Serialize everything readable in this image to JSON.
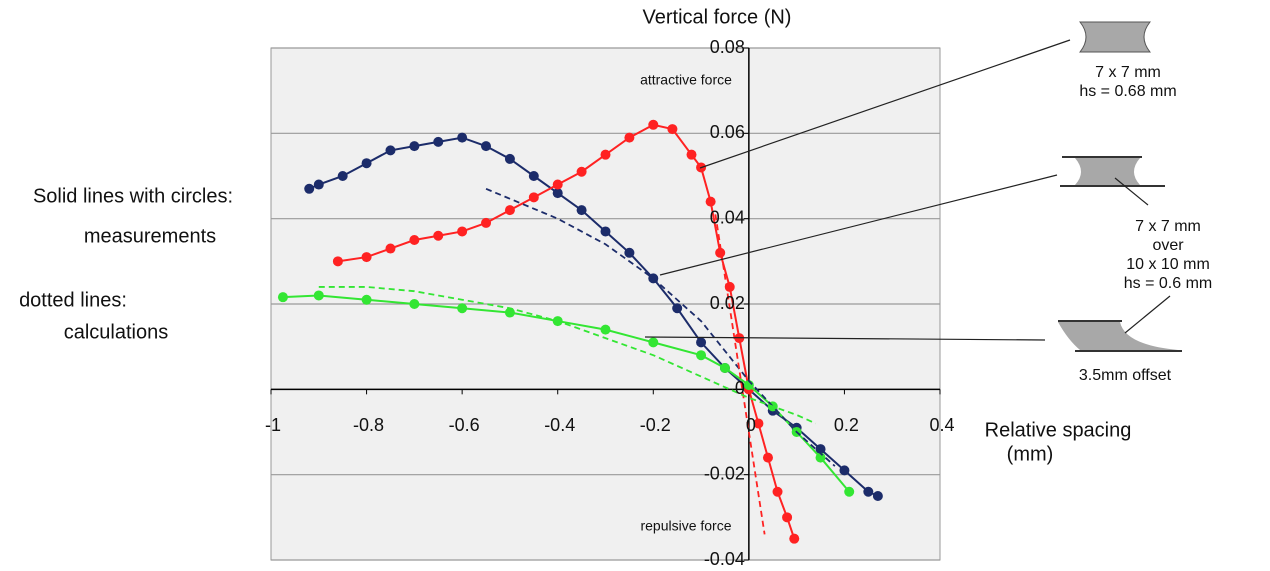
{
  "chart_data": {
    "type": "line",
    "ylabel": "Vertical force (N)",
    "xlabel": [
      "Relative spacing",
      "(mm)"
    ],
    "xlim": [
      -1,
      0.4
    ],
    "ylim": [
      -0.04,
      0.08
    ],
    "xticks": [
      -1,
      -0.8,
      -0.6,
      -0.4,
      -0.2,
      0,
      0.2,
      0.4
    ],
    "yticks": [
      -0.04,
      -0.02,
      0,
      0.02,
      0.04,
      0.06,
      0.08
    ],
    "grid": true,
    "annotations": [
      "attractive force",
      "repulsive force"
    ],
    "notes": [
      "Solid lines with circles:",
      "measurements",
      "dotted lines:",
      "calculations"
    ],
    "sketch_labels": [
      [
        "7 x 7 mm",
        "hs = 0.68 mm"
      ],
      [
        "7 x 7 mm",
        "over",
        "10 x 10 mm",
        "hs  = 0.6 mm"
      ],
      [
        "3.5mm offset"
      ]
    ],
    "series": [
      {
        "color": "#1c2c6a",
        "style": "solid-markers",
        "x": [
          -0.92,
          -0.9,
          -0.85,
          -0.8,
          -0.75,
          -0.7,
          -0.65,
          -0.6,
          -0.55,
          -0.5,
          -0.45,
          -0.4,
          -0.35,
          -0.3,
          -0.25,
          -0.2,
          -0.15,
          -0.1,
          -0.05,
          0,
          0.05,
          0.1,
          0.15,
          0.2,
          0.25,
          0.27
        ],
        "values": [
          0.047,
          0.048,
          0.05,
          0.053,
          0.056,
          0.057,
          0.058,
          0.059,
          0.057,
          0.054,
          0.05,
          0.046,
          0.042,
          0.037,
          0.032,
          0.026,
          0.019,
          0.011,
          0.005,
          0,
          -0.005,
          -0.009,
          -0.014,
          -0.019,
          -0.024,
          -0.025
        ]
      },
      {
        "color": "#ff2222",
        "style": "solid-markers",
        "x": [
          -0.86,
          -0.8,
          -0.75,
          -0.7,
          -0.65,
          -0.6,
          -0.55,
          -0.5,
          -0.45,
          -0.4,
          -0.35,
          -0.3,
          -0.25,
          -0.2,
          -0.16,
          -0.12,
          -0.1,
          -0.08,
          -0.06,
          -0.04,
          -0.02,
          0,
          0.02,
          0.04,
          0.06,
          0.08,
          0.095
        ],
        "values": [
          0.03,
          0.031,
          0.033,
          0.035,
          0.036,
          0.037,
          0.039,
          0.042,
          0.045,
          0.048,
          0.051,
          0.055,
          0.059,
          0.062,
          0.061,
          0.055,
          0.052,
          0.044,
          0.032,
          0.024,
          0.012,
          0,
          -0.008,
          -0.016,
          -0.024,
          -0.03,
          -0.035
        ]
      },
      {
        "color": "#33e633",
        "style": "solid-markers",
        "x": [
          -0.975,
          -0.9,
          -0.8,
          -0.7,
          -0.6,
          -0.5,
          -0.4,
          -0.3,
          -0.2,
          -0.1,
          -0.05,
          0,
          0.05,
          0.1,
          0.15,
          0.21
        ],
        "values": [
          0.0216,
          0.022,
          0.021,
          0.02,
          0.019,
          0.018,
          0.016,
          0.014,
          0.011,
          0.008,
          0.005,
          0.001,
          -0.004,
          -0.01,
          -0.016,
          -0.024
        ]
      },
      {
        "color": "#1c2c6a",
        "style": "dashed",
        "x": [
          -0.55,
          -0.4,
          -0.3,
          -0.2,
          -0.1,
          0,
          0.1,
          0.18
        ],
        "values": [
          0.047,
          0.04,
          0.034,
          0.026,
          0.016,
          0.002,
          -0.01,
          -0.018
        ]
      },
      {
        "color": "#ff2222",
        "style": "dashed",
        "x": [
          -0.07,
          0.033
        ],
        "values": [
          0.041,
          -0.034
        ]
      },
      {
        "color": "#33e633",
        "style": "dashed",
        "x": [
          -0.9,
          -0.8,
          -0.7,
          -0.6,
          -0.5,
          -0.4,
          -0.3,
          -0.2,
          -0.1,
          0,
          0.1,
          0.14
        ],
        "values": [
          0.024,
          0.024,
          0.023,
          0.021,
          0.019,
          0.016,
          0.012,
          0.008,
          0.003,
          -0.002,
          -0.006,
          -0.008
        ]
      }
    ]
  }
}
